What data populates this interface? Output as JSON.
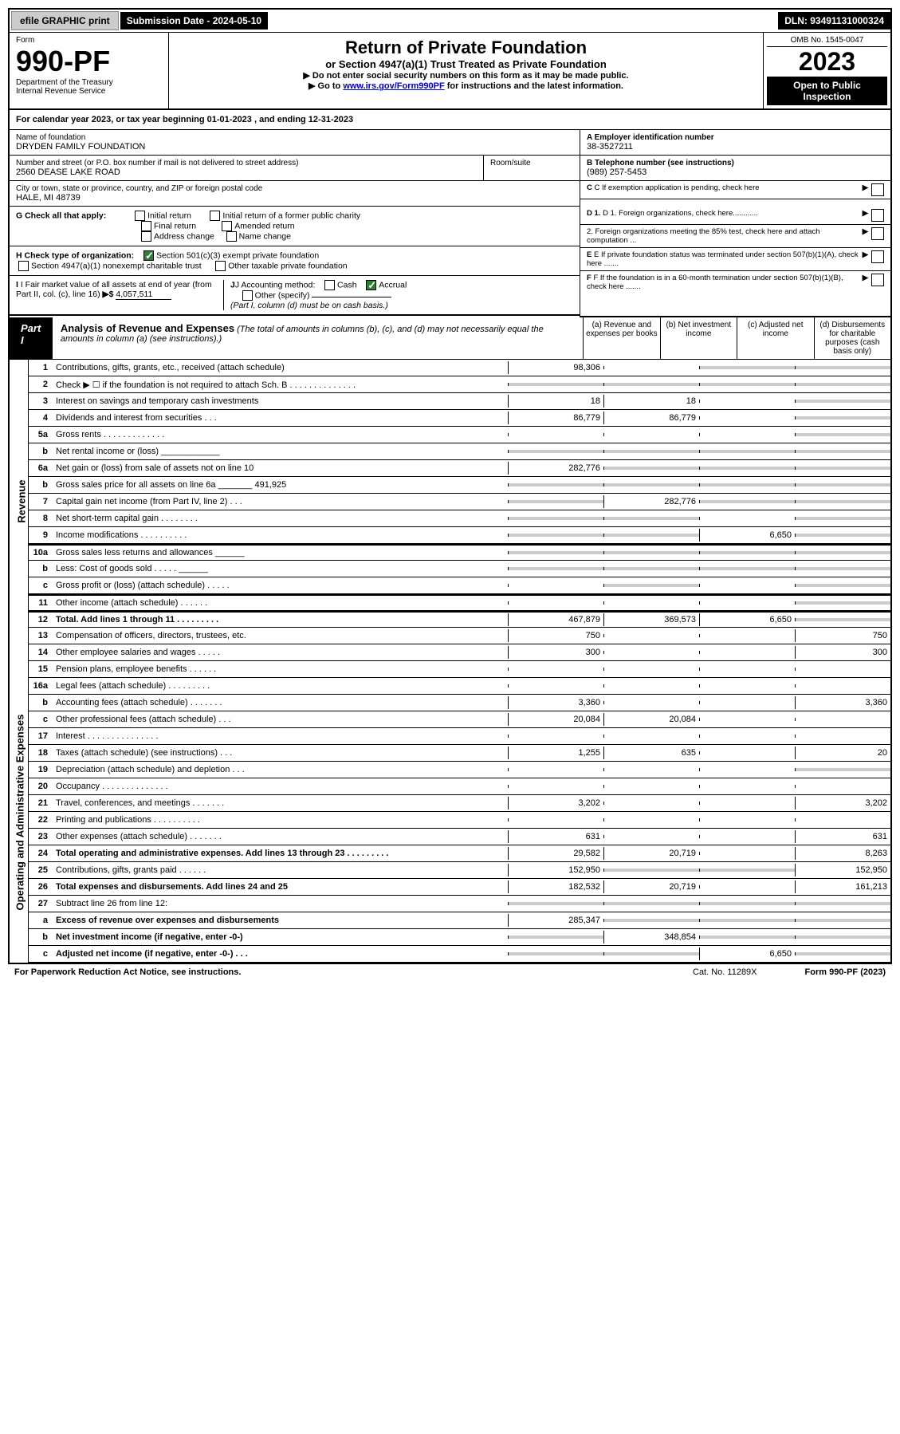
{
  "topbar": {
    "efile": "efile GRAPHIC print",
    "submission_label": "Submission Date - 2024-05-10",
    "dln": "DLN: 93491131000324"
  },
  "header": {
    "form_label": "Form",
    "form_number": "990-PF",
    "dept": "Department of the Treasury",
    "irs": "Internal Revenue Service",
    "title": "Return of Private Foundation",
    "subtitle": "or Section 4947(a)(1) Trust Treated as Private Foundation",
    "instr1": "▶ Do not enter social security numbers on this form as it may be made public.",
    "instr2_prefix": "▶ Go to ",
    "instr2_link": "www.irs.gov/Form990PF",
    "instr2_suffix": " for instructions and the latest information.",
    "omb": "OMB No. 1545-0047",
    "year": "2023",
    "open": "Open to Public Inspection"
  },
  "calyear": "For calendar year 2023, or tax year beginning 01-01-2023             , and ending 12-31-2023",
  "ident": {
    "name_label": "Name of foundation",
    "name": "DRYDEN FAMILY FOUNDATION",
    "addr_label": "Number and street (or P.O. box number if mail is not delivered to street address)",
    "addr": "2560 DEASE LAKE ROAD",
    "room_label": "Room/suite",
    "city_label": "City or town, state or province, country, and ZIP or foreign postal code",
    "city": "HALE, MI  48739",
    "a_label": "A Employer identification number",
    "a_value": "38-3527211",
    "b_label": "B Telephone number (see instructions)",
    "b_value": "(989) 257-5453",
    "c_label": "C If exemption application is pending, check here",
    "d1": "D 1. Foreign organizations, check here............",
    "d2": "2. Foreign organizations meeting the 85% test, check here and attach computation ...",
    "e_label": "E  If private foundation status was terminated under section 507(b)(1)(A), check here .......",
    "f_label": "F  If the foundation is in a 60-month termination under section 507(b)(1)(B), check here .......",
    "g_label": "G Check all that apply:",
    "g_opts": [
      "Initial return",
      "Initial return of a former public charity",
      "Final return",
      "Amended return",
      "Address change",
      "Name change"
    ],
    "h_label": "H Check type of organization:",
    "h_opt1": "Section 501(c)(3) exempt private foundation",
    "h_opt2": "Section 4947(a)(1) nonexempt charitable trust",
    "h_opt3": "Other taxable private foundation",
    "i_label": "I Fair market value of all assets at end of year (from Part II, col. (c), line 16)",
    "i_value": "4,057,511",
    "j_label": "J Accounting method:",
    "j_cash": "Cash",
    "j_accrual": "Accrual",
    "j_other": "Other (specify)",
    "j_note": "(Part I, column (d) must be on cash basis.)"
  },
  "part1": {
    "label": "Part I",
    "title": "Analysis of Revenue and Expenses",
    "title_note": "(The total of amounts in columns (b), (c), and (d) may not necessarily equal the amounts in column (a) (see instructions).)",
    "cols": {
      "a": "(a)   Revenue and expenses per books",
      "b": "(b)   Net investment income",
      "c": "(c)   Adjusted net income",
      "d": "(d)   Disbursements for charitable purposes (cash basis only)"
    }
  },
  "sides": {
    "revenue": "Revenue",
    "expenses": "Operating and Administrative Expenses"
  },
  "rows": [
    {
      "ln": "1",
      "desc": "Contributions, gifts, grants, etc., received (attach schedule)",
      "a": "98,306",
      "b": "",
      "c": "",
      "d": "",
      "shade": [
        "c",
        "d"
      ]
    },
    {
      "ln": "2",
      "desc": "Check ▶ ☐ if the foundation is not required to attach Sch. B   .  .  .  .  .  .  .  .  .  .  .  .  .  .",
      "a": "",
      "b": "",
      "c": "",
      "d": "",
      "shade": [
        "a",
        "b",
        "c",
        "d"
      ]
    },
    {
      "ln": "3",
      "desc": "Interest on savings and temporary cash investments",
      "a": "18",
      "b": "18",
      "c": "",
      "d": "",
      "shade": [
        "d"
      ]
    },
    {
      "ln": "4",
      "desc": "Dividends and interest from securities   .   .   .",
      "a": "86,779",
      "b": "86,779",
      "c": "",
      "d": "",
      "shade": [
        "d"
      ]
    },
    {
      "ln": "5a",
      "desc": "Gross rents   .  .  .  .  .  .  .  .  .  .  .  .  .",
      "a": "",
      "b": "",
      "c": "",
      "d": "",
      "shade": [
        "d"
      ]
    },
    {
      "ln": "b",
      "desc": "Net rental income or (loss)   ____________",
      "a": "",
      "b": "",
      "c": "",
      "d": "",
      "shade": [
        "a",
        "b",
        "c",
        "d"
      ]
    },
    {
      "ln": "6a",
      "desc": "Net gain or (loss) from sale of assets not on line 10",
      "a": "282,776",
      "b": "",
      "c": "",
      "d": "",
      "shade": [
        "b",
        "c",
        "d"
      ]
    },
    {
      "ln": "b",
      "desc": "Gross sales price for all assets on line 6a _______ 491,925",
      "a": "",
      "b": "",
      "c": "",
      "d": "",
      "shade": [
        "a",
        "b",
        "c",
        "d"
      ]
    },
    {
      "ln": "7",
      "desc": "Capital gain net income (from Part IV, line 2)   .   .   .",
      "a": "",
      "b": "282,776",
      "c": "",
      "d": "",
      "shade": [
        "a",
        "c",
        "d"
      ]
    },
    {
      "ln": "8",
      "desc": "Net short-term capital gain   .  .  .  .  .  .  .  .",
      "a": "",
      "b": "",
      "c": "",
      "d": "",
      "shade": [
        "a",
        "b",
        "d"
      ]
    },
    {
      "ln": "9",
      "desc": "Income modifications   .  .  .  .  .  .  .  .  .  .",
      "a": "",
      "b": "",
      "c": "6,650",
      "d": "",
      "shade": [
        "a",
        "b",
        "d"
      ]
    },
    {
      "ln": "10a",
      "desc": "Gross sales less returns and allowances   ______",
      "a": "",
      "b": "",
      "c": "",
      "d": "",
      "shade": [
        "a",
        "b",
        "c",
        "d"
      ]
    },
    {
      "ln": "b",
      "desc": "Less: Cost of goods sold   .   .   .   .   .   ______",
      "a": "",
      "b": "",
      "c": "",
      "d": "",
      "shade": [
        "a",
        "b",
        "c",
        "d"
      ]
    },
    {
      "ln": "c",
      "desc": "Gross profit or (loss) (attach schedule)   .   .   .   .   .",
      "a": "",
      "b": "",
      "c": "",
      "d": "",
      "shade": [
        "b",
        "d"
      ]
    },
    {
      "ln": "11",
      "desc": "Other income (attach schedule)   .   .   .   .   .   .",
      "a": "",
      "b": "",
      "c": "",
      "d": "",
      "shade": [
        "d"
      ]
    },
    {
      "ln": "12",
      "desc": "Total. Add lines 1 through 11   .  .  .  .  .  .  .  .  .",
      "bold": true,
      "a": "467,879",
      "b": "369,573",
      "c": "6,650",
      "d": "",
      "shade": [
        "d"
      ]
    },
    {
      "ln": "13",
      "desc": "Compensation of officers, directors, trustees, etc.",
      "a": "750",
      "b": "",
      "c": "",
      "d": "750"
    },
    {
      "ln": "14",
      "desc": "Other employee salaries and wages   .   .   .   .   .",
      "a": "300",
      "b": "",
      "c": "",
      "d": "300"
    },
    {
      "ln": "15",
      "desc": "Pension plans, employee benefits   .   .   .   .   .   .",
      "a": "",
      "b": "",
      "c": "",
      "d": ""
    },
    {
      "ln": "16a",
      "desc": "Legal fees (attach schedule)  .  .  .  .  .  .  .  .  .",
      "a": "",
      "b": "",
      "c": "",
      "d": ""
    },
    {
      "ln": "b",
      "desc": "Accounting fees (attach schedule)  .  .  .  .  .  .  .",
      "a": "3,360",
      "b": "",
      "c": "",
      "d": "3,360"
    },
    {
      "ln": "c",
      "desc": "Other professional fees (attach schedule)   .   .   .",
      "a": "20,084",
      "b": "20,084",
      "c": "",
      "d": ""
    },
    {
      "ln": "17",
      "desc": "Interest  .  .  .  .  .  .  .  .  .  .  .  .  .  .  .",
      "a": "",
      "b": "",
      "c": "",
      "d": ""
    },
    {
      "ln": "18",
      "desc": "Taxes (attach schedule) (see instructions)   .   .   .",
      "a": "1,255",
      "b": "635",
      "c": "",
      "d": "20"
    },
    {
      "ln": "19",
      "desc": "Depreciation (attach schedule) and depletion   .   .   .",
      "a": "",
      "b": "",
      "c": "",
      "d": "",
      "shade": [
        "d"
      ]
    },
    {
      "ln": "20",
      "desc": "Occupancy  .  .  .  .  .  .  .  .  .  .  .  .  .  .",
      "a": "",
      "b": "",
      "c": "",
      "d": ""
    },
    {
      "ln": "21",
      "desc": "Travel, conferences, and meetings  .  .  .  .  .  .  .",
      "a": "3,202",
      "b": "",
      "c": "",
      "d": "3,202"
    },
    {
      "ln": "22",
      "desc": "Printing and publications  .  .  .  .  .  .  .  .  .  .",
      "a": "",
      "b": "",
      "c": "",
      "d": ""
    },
    {
      "ln": "23",
      "desc": "Other expenses (attach schedule)  .  .  .  .  .  .  .",
      "a": "631",
      "b": "",
      "c": "",
      "d": "631"
    },
    {
      "ln": "24",
      "desc": "Total operating and administrative expenses. Add lines 13 through 23   .  .  .  .  .  .  .  .  .",
      "bold": true,
      "a": "29,582",
      "b": "20,719",
      "c": "",
      "d": "8,263"
    },
    {
      "ln": "25",
      "desc": "Contributions, gifts, grants paid   .   .   .   .   .   .",
      "a": "152,950",
      "b": "",
      "c": "",
      "d": "152,950",
      "shade": [
        "b",
        "c"
      ]
    },
    {
      "ln": "26",
      "desc": "Total expenses and disbursements. Add lines 24 and 25",
      "bold": true,
      "a": "182,532",
      "b": "20,719",
      "c": "",
      "d": "161,213"
    },
    {
      "ln": "27",
      "desc": "Subtract line 26 from line 12:",
      "a": "",
      "b": "",
      "c": "",
      "d": "",
      "shade": [
        "a",
        "b",
        "c",
        "d"
      ]
    },
    {
      "ln": "a",
      "desc": "Excess of revenue over expenses and disbursements",
      "bold": true,
      "a": "285,347",
      "b": "",
      "c": "",
      "d": "",
      "shade": [
        "b",
        "c",
        "d"
      ]
    },
    {
      "ln": "b",
      "desc": "Net investment income (if negative, enter -0-)",
      "bold": true,
      "a": "",
      "b": "348,854",
      "c": "",
      "d": "",
      "shade": [
        "a",
        "c",
        "d"
      ]
    },
    {
      "ln": "c",
      "desc": "Adjusted net income (if negative, enter -0-)   .   .   .",
      "bold": true,
      "a": "",
      "b": "",
      "c": "6,650",
      "d": "",
      "shade": [
        "a",
        "b",
        "d"
      ]
    }
  ],
  "footer": {
    "left": "For Paperwork Reduction Act Notice, see instructions.",
    "cat": "Cat. No. 11289X",
    "right": "Form 990-PF (2023)"
  }
}
